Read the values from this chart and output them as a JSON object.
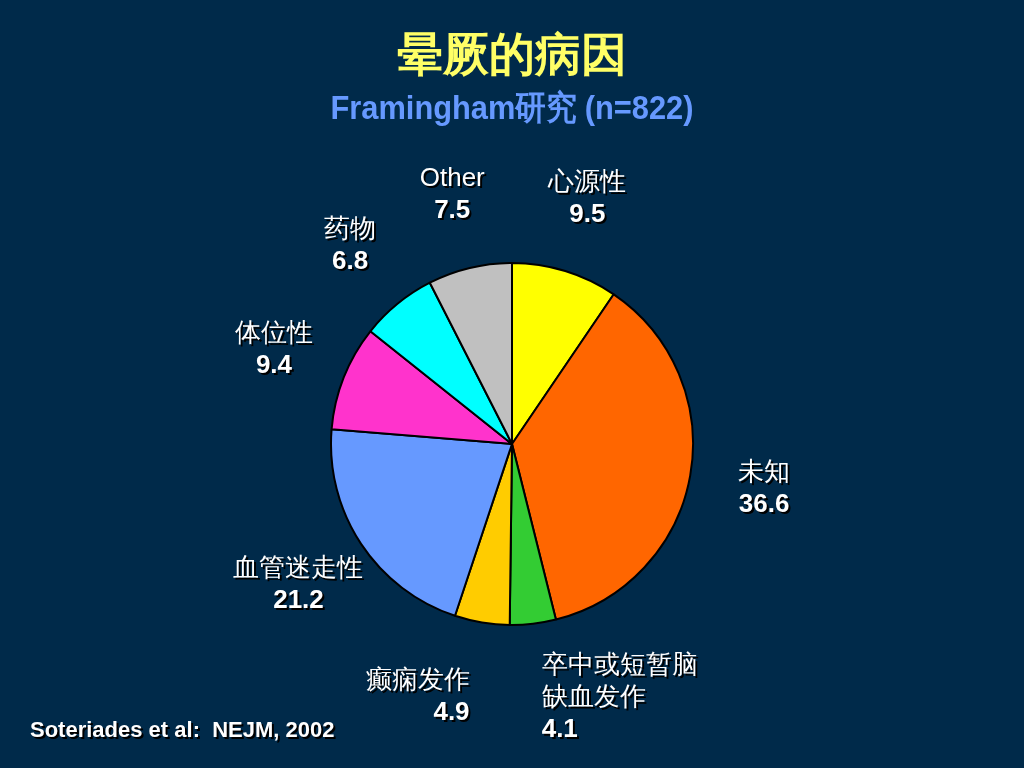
{
  "chart_data": {
    "type": "pie",
    "title": "晕厥的病因",
    "subtitle": "Framingham研究 (n=822)",
    "categories": [
      "心源性",
      "未知",
      "卒中或短暂脑缺血发作",
      "癫痫发作",
      "血管迷走性",
      "体位性",
      "药物",
      "Other"
    ],
    "values": [
      9.5,
      36.6,
      4.1,
      4.9,
      21.2,
      9.4,
      6.8,
      7.5
    ],
    "colors": [
      "#ffff00",
      "#ff6600",
      "#33cc33",
      "#ffcc00",
      "#6699ff",
      "#ff33cc",
      "#00ffff",
      "#c0c0c0"
    ],
    "data_labels": true,
    "legend": false,
    "annotations": [
      "Soteriades et al:  NEJM, 2002"
    ]
  }
}
